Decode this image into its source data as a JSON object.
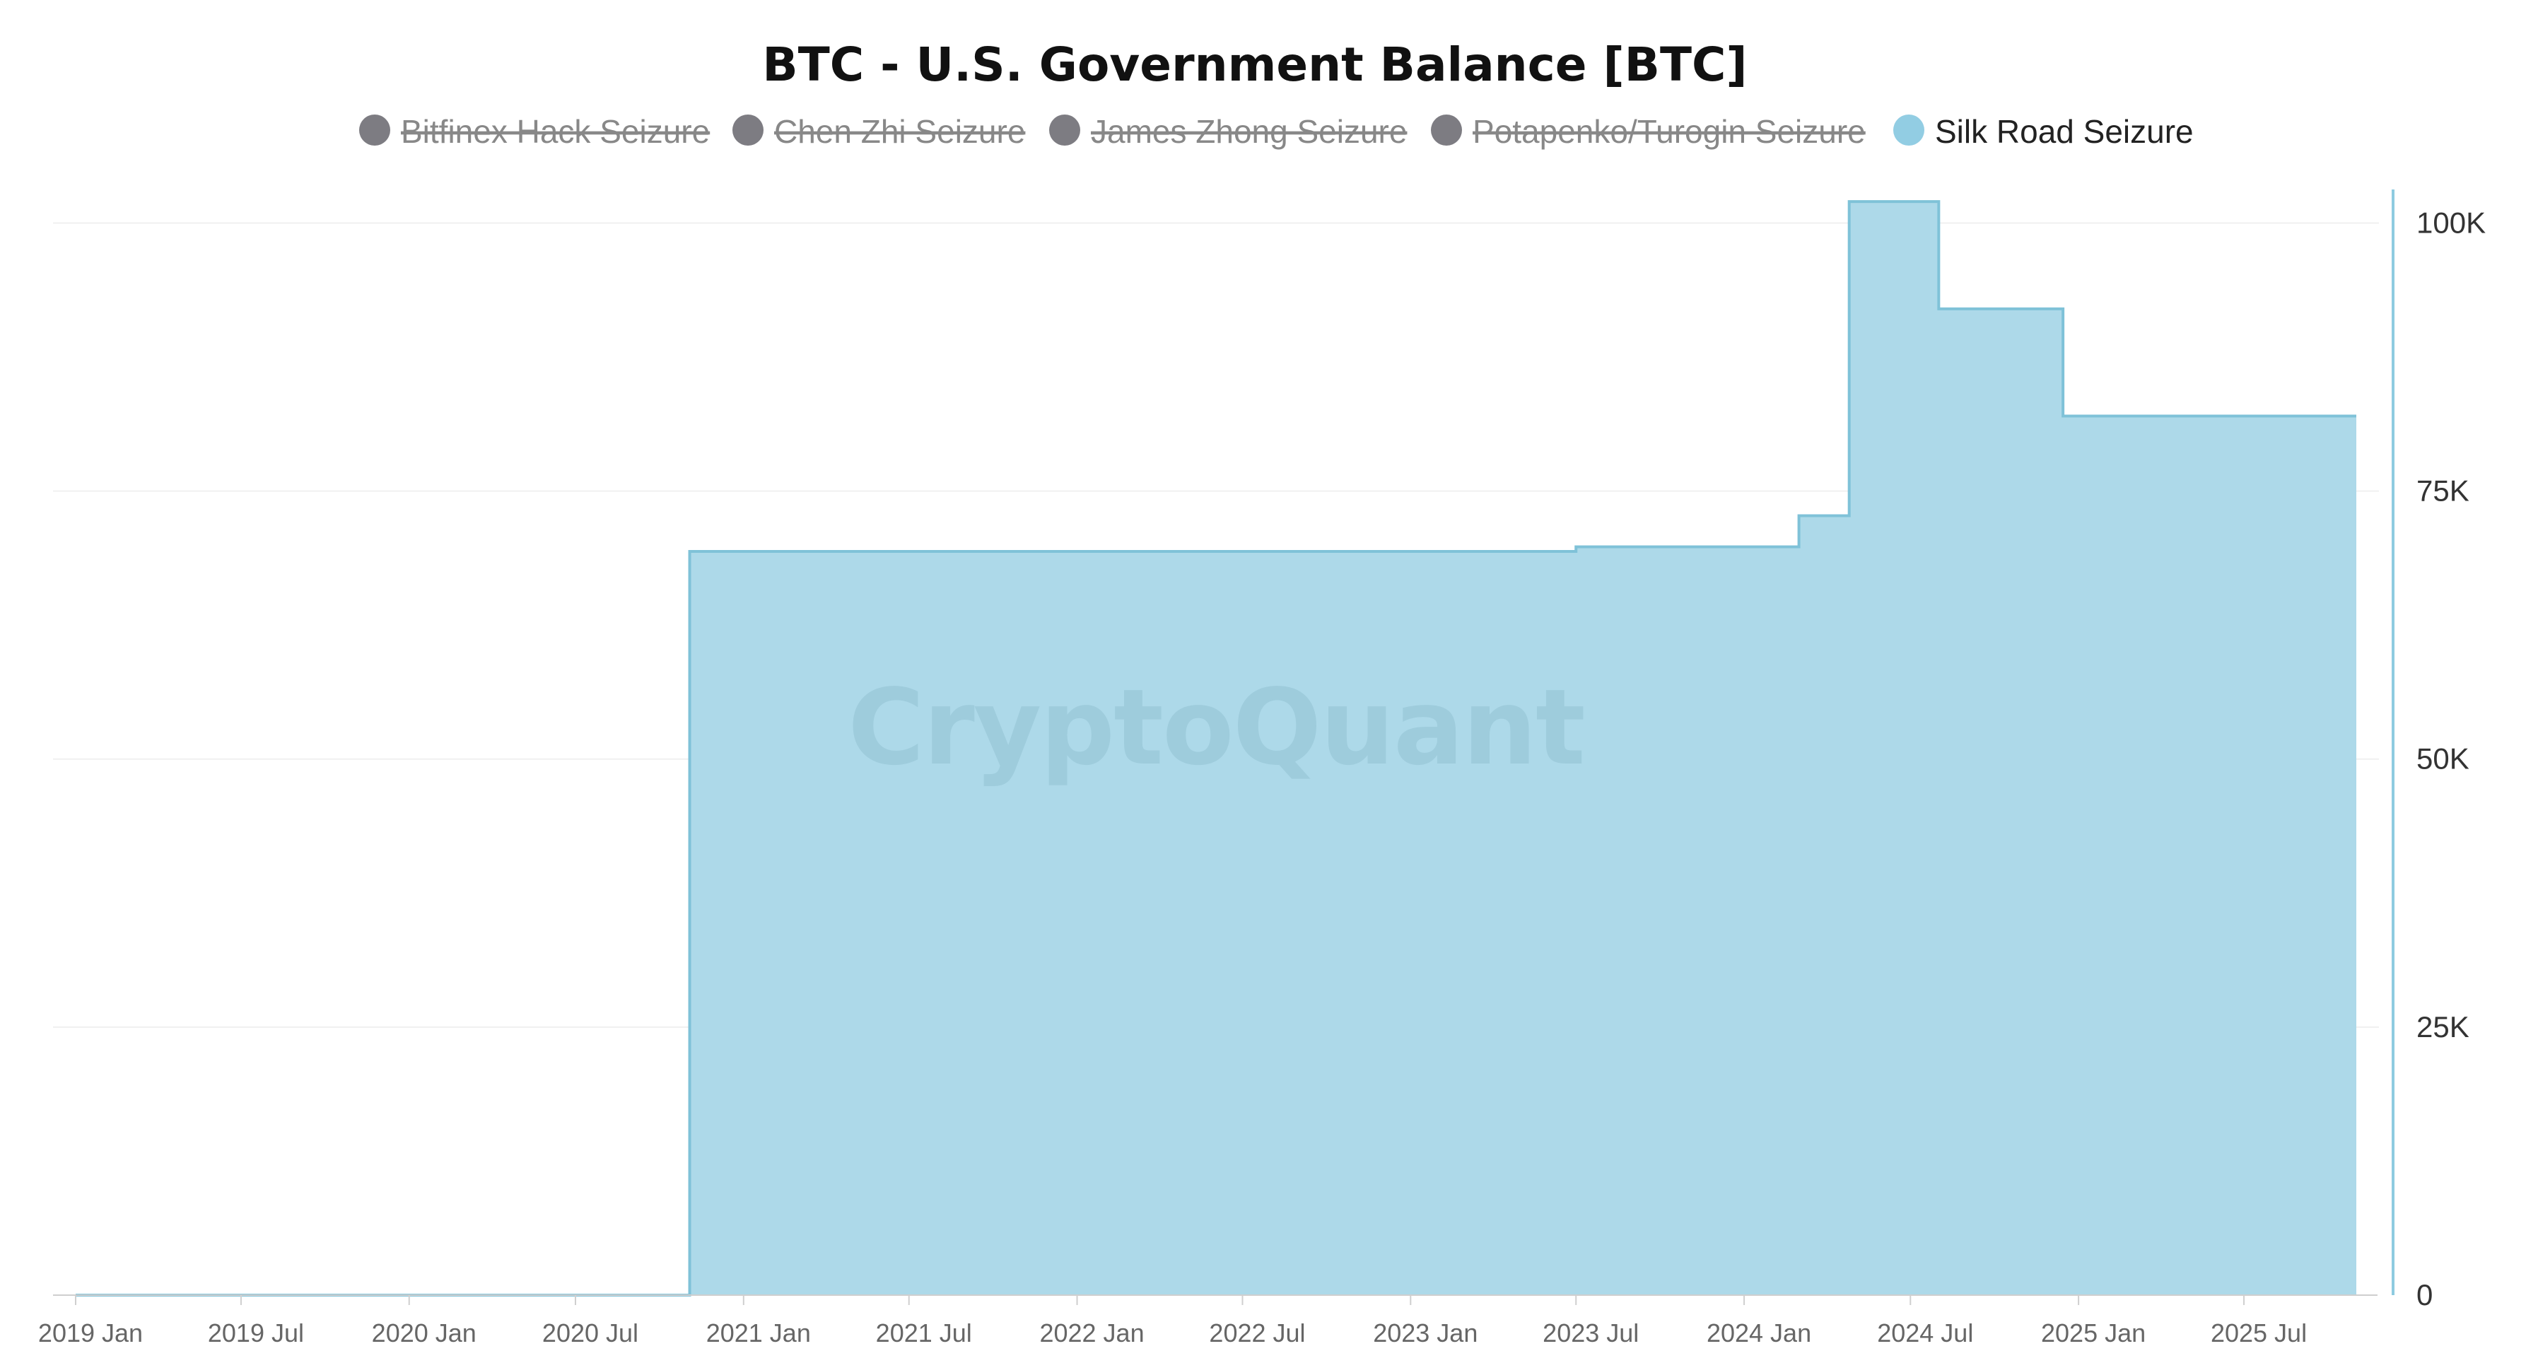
{
  "chart_data": {
    "type": "area",
    "step": true,
    "title": "BTC - U.S. Government Balance [BTC]",
    "xlabel": "",
    "ylabel": "",
    "watermark": "CryptoQuant",
    "legend_position": "top-center",
    "grid": true,
    "x_ticks": [
      "2019 Jan",
      "2019 Jul",
      "2020 Jan",
      "2020 Jul",
      "2021 Jan",
      "2021 Jul",
      "2022 Jan",
      "2022 Jul",
      "2023 Jan",
      "2023 Jul",
      "2024 Jan",
      "2024 Jul",
      "2025 Jan",
      "2025 Jul"
    ],
    "x_range": [
      "2019-01-01",
      "2025-11-01"
    ],
    "y_ticks": [
      0,
      25000,
      50000,
      75000,
      100000
    ],
    "y_tick_labels": [
      "0",
      "25K",
      "50K",
      "75K",
      "100K"
    ],
    "ylim": [
      0,
      103000
    ],
    "y_axis_side": "right",
    "legend": [
      {
        "name": "Bitfinex Hack Seizure",
        "color": "#7d7c82",
        "enabled": false
      },
      {
        "name": "Chen Zhi Seizure",
        "color": "#7d7c82",
        "enabled": false
      },
      {
        "name": "James Zhong Seizure",
        "color": "#7d7c82",
        "enabled": false
      },
      {
        "name": "Potapenko/Turogin Seizure",
        "color": "#7d7c82",
        "enabled": false
      },
      {
        "name": "Silk Road Seizure",
        "color": "#92cde3",
        "enabled": true
      }
    ],
    "series": [
      {
        "name": "Silk Road Seizure",
        "fill_color": "#add9e9",
        "line_color": "#7fc2d8",
        "points": [
          {
            "x": "2019-01-01",
            "y": 0
          },
          {
            "x": "2020-11-03",
            "y": 69370
          },
          {
            "x": "2023-07-01",
            "y": 69800
          },
          {
            "x": "2024-03-01",
            "y": 72700
          },
          {
            "x": "2024-04-25",
            "y": 102000
          },
          {
            "x": "2024-08-01",
            "y": 92000
          },
          {
            "x": "2024-12-15",
            "y": 82000
          },
          {
            "x": "2025-11-01",
            "y": 82000
          }
        ]
      }
    ]
  }
}
